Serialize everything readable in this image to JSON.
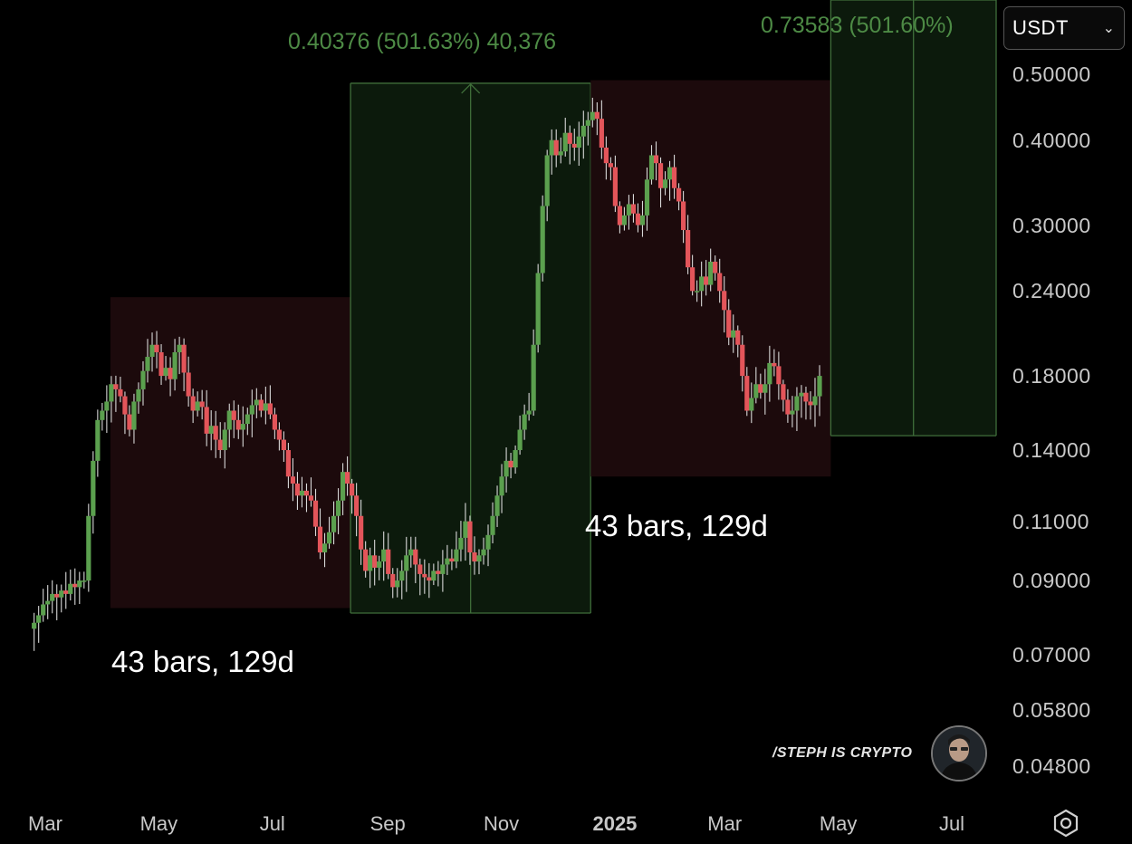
{
  "currency_select": {
    "value": "USDT",
    "chevron_icon": "chevron-down-icon"
  },
  "measures": [
    {
      "text": "0.40376 (501.63%) 40,376"
    },
    {
      "text": "0.73583 (501.60%)"
    }
  ],
  "bar_counts": [
    {
      "text": "43 bars, 129d"
    },
    {
      "text": "43 bars, 129d"
    }
  ],
  "watermark": {
    "text": "/STEPH IS CRYPTO",
    "avatar_icon": "avatar-portrait-icon"
  },
  "settings": {
    "icon": "settings-hexagon-icon"
  },
  "colors": {
    "up": "#5ba04e",
    "down": "#e3555a",
    "wick": "#d8d8d8",
    "green_zone": "#0c1a0c",
    "red_zone": "#1c0a0c",
    "measure_text": "#4d8a45"
  },
  "chart_data": {
    "type": "candlestick",
    "scale": "log",
    "ylim": [
      0.042,
      0.58
    ],
    "y_ticks": [
      "0.50000",
      "0.40000",
      "0.30000",
      "0.24000",
      "0.18000",
      "0.14000",
      "0.11000",
      "0.09000",
      "0.07000",
      "0.05800",
      "0.04800"
    ],
    "x_ticks": [
      {
        "label": "Mar",
        "date": "2024-03-01"
      },
      {
        "label": "May",
        "date": "2024-05-01"
      },
      {
        "label": "Jul",
        "date": "2024-07-01"
      },
      {
        "label": "Sep",
        "date": "2024-09-01"
      },
      {
        "label": "Nov",
        "date": "2024-11-01"
      },
      {
        "label": "2025",
        "date": "2025-01-01",
        "bold": true
      },
      {
        "label": "Mar",
        "date": "2025-03-01"
      },
      {
        "label": "May",
        "date": "2025-05-01"
      },
      {
        "label": "Jul",
        "date": "2025-07-01"
      }
    ],
    "zones": [
      {
        "type": "drawdown",
        "start": "2024-04-05",
        "end": "2024-08-12",
        "top": 0.235,
        "bottom": 0.082
      },
      {
        "type": "rally",
        "start": "2024-08-12",
        "end": "2024-12-19",
        "top": 0.485,
        "bottom": 0.0806,
        "change": 0.40376,
        "pct": 501.63
      },
      {
        "type": "drawdown",
        "start": "2024-12-19",
        "end": "2025-04-27",
        "top": 0.49,
        "bottom": 0.128
      },
      {
        "type": "rally_projection",
        "start": "2025-04-27",
        "end": "2025-09-03",
        "top": 0.88,
        "bottom": 0.147,
        "change": 0.73583,
        "pct": 501.6
      }
    ],
    "series_close": [
      0.078,
      0.08,
      0.083,
      0.084,
      0.086,
      0.085,
      0.087,
      0.086,
      0.089,
      0.088,
      0.09,
      0.09,
      0.112,
      0.135,
      0.155,
      0.16,
      0.165,
      0.175,
      0.172,
      0.168,
      0.158,
      0.15,
      0.165,
      0.172,
      0.183,
      0.192,
      0.2,
      0.195,
      0.18,
      0.185,
      0.178,
      0.195,
      0.2,
      0.182,
      0.168,
      0.16,
      0.165,
      0.162,
      0.148,
      0.152,
      0.145,
      0.14,
      0.15,
      0.16,
      0.155,
      0.15,
      0.153,
      0.158,
      0.163,
      0.166,
      0.16,
      0.164,
      0.158,
      0.15,
      0.145,
      0.14,
      0.128,
      0.125,
      0.12,
      0.122,
      0.12,
      0.118,
      0.108,
      0.099,
      0.102,
      0.106,
      0.112,
      0.118,
      0.13,
      0.125,
      0.12,
      0.112,
      0.1,
      0.093,
      0.098,
      0.094,
      0.096,
      0.1,
      0.092,
      0.088,
      0.09,
      0.093,
      0.098,
      0.1,
      0.095,
      0.092,
      0.091,
      0.09,
      0.093,
      0.092,
      0.095,
      0.097,
      0.096,
      0.1,
      0.104,
      0.11,
      0.099,
      0.096,
      0.098,
      0.1,
      0.105,
      0.112,
      0.12,
      0.128,
      0.135,
      0.132,
      0.14,
      0.15,
      0.158,
      0.16,
      0.2,
      0.255,
      0.32,
      0.38,
      0.4,
      0.38,
      0.385,
      0.41,
      0.395,
      0.39,
      0.405,
      0.42,
      0.428,
      0.44,
      0.43,
      0.39,
      0.37,
      0.365,
      0.32,
      0.3,
      0.31,
      0.322,
      0.312,
      0.3,
      0.31,
      0.35,
      0.38,
      0.37,
      0.34,
      0.35,
      0.365,
      0.34,
      0.325,
      0.295,
      0.26,
      0.24,
      0.24,
      0.252,
      0.245,
      0.265,
      0.255,
      0.24,
      0.225,
      0.205,
      0.21,
      0.2,
      0.18,
      0.16,
      0.167,
      0.175,
      0.17,
      0.175,
      0.188,
      0.186,
      0.175,
      0.166,
      0.158,
      0.16,
      0.168,
      0.17,
      0.165,
      0.163,
      0.168,
      0.18
    ]
  }
}
